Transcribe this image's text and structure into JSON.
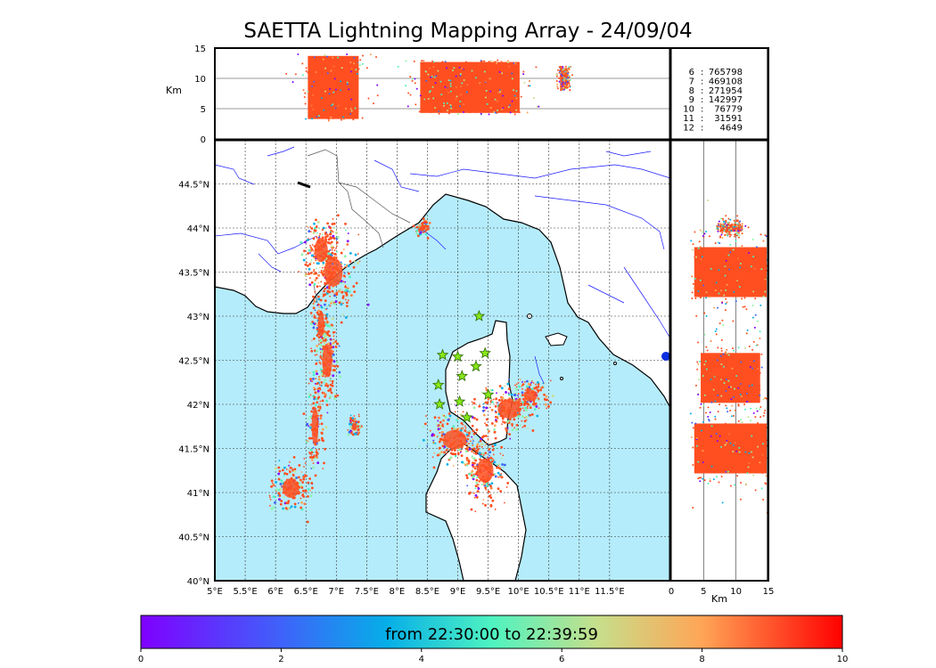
{
  "title": "SAETTA Lightning Mapping Array - 24/09/04",
  "colorbar": {
    "label": "from 22:30:00 to 22:39:59",
    "ticks": [
      "0",
      "2",
      "4",
      "6",
      "8",
      "10"
    ]
  },
  "stats": [
    {
      "level": "6",
      "count": "765798",
      "highlight": false
    },
    {
      "level": "7",
      "count": "469108",
      "highlight": true
    },
    {
      "level": "8",
      "count": "271954",
      "highlight": false
    },
    {
      "level": "9",
      "count": "142997",
      "highlight": false
    },
    {
      "level": "10",
      "count": "76779",
      "highlight": false
    },
    {
      "level": "11",
      "count": "31591",
      "highlight": false
    },
    {
      "level": "12",
      "count": "4649",
      "highlight": false
    }
  ],
  "colors": {
    "sea": "#b5ecfb",
    "dense_strokes": "#ff4f20",
    "highlight_text": "#ff0000",
    "station_marker": "#88e818",
    "rivers": "#1a1aff"
  },
  "chart_data": [
    {
      "type": "scatter",
      "name": "plan_view",
      "xlabel": "",
      "ylabel": "",
      "xlim": [
        5,
        12.5
      ],
      "ylim": [
        40,
        45
      ],
      "xticks": [
        "5°E",
        "5.5°E",
        "6°E",
        "6.5°E",
        "7°E",
        "7.5°E",
        "8°E",
        "8.5°E",
        "9°E",
        "9.5°E",
        "10°E",
        "10.5°E",
        "11°E",
        "11.5°E"
      ],
      "yticks": [
        "40°N",
        "40.5°N",
        "41°N",
        "41.5°N",
        "42°N",
        "42.5°N",
        "43°N",
        "43.5°N",
        "44°N",
        "44.5°N"
      ],
      "grid": true,
      "stations": [
        {
          "lon": 9.35,
          "lat": 43.0
        },
        {
          "lon": 8.75,
          "lat": 42.56
        },
        {
          "lon": 9.0,
          "lat": 42.54
        },
        {
          "lon": 9.45,
          "lat": 42.58
        },
        {
          "lon": 9.3,
          "lat": 42.43
        },
        {
          "lon": 9.07,
          "lat": 42.32
        },
        {
          "lon": 8.68,
          "lat": 42.22
        },
        {
          "lon": 9.5,
          "lat": 42.11
        },
        {
          "lon": 8.7,
          "lat": 42.0
        },
        {
          "lon": 9.03,
          "lat": 42.03
        },
        {
          "lon": 9.15,
          "lat": 41.85
        }
      ],
      "dense_regions": [
        {
          "lon": 6.95,
          "lat": 43.5,
          "dlon": 0.28,
          "dlat": 0.3
        },
        {
          "lon": 6.75,
          "lat": 43.75,
          "dlon": 0.2,
          "dlat": 0.25
        },
        {
          "lon": 6.85,
          "lat": 42.5,
          "dlon": 0.15,
          "dlat": 0.35
        },
        {
          "lon": 6.75,
          "lat": 42.9,
          "dlon": 0.1,
          "dlat": 0.25
        },
        {
          "lon": 6.65,
          "lat": 41.75,
          "dlon": 0.1,
          "dlat": 0.4
        },
        {
          "lon": 6.25,
          "lat": 41.05,
          "dlon": 0.25,
          "dlat": 0.2
        },
        {
          "lon": 8.95,
          "lat": 41.6,
          "dlon": 0.35,
          "dlat": 0.2
        },
        {
          "lon": 9.45,
          "lat": 41.25,
          "dlon": 0.25,
          "dlat": 0.25
        },
        {
          "lon": 9.85,
          "lat": 41.95,
          "dlon": 0.35,
          "dlat": 0.2
        },
        {
          "lon": 10.2,
          "lat": 42.1,
          "dlon": 0.2,
          "dlat": 0.12
        },
        {
          "lon": 8.42,
          "lat": 44.0,
          "dlon": 0.08,
          "dlat": 0.06
        },
        {
          "lon": 7.3,
          "lat": 41.75,
          "dlon": 0.08,
          "dlat": 0.08
        }
      ]
    },
    {
      "type": "scatter",
      "name": "altitude_vs_longitude",
      "ylabel": "Km",
      "xlim": [
        5,
        12.5
      ],
      "ylim": [
        0,
        15
      ],
      "yticks": [
        "0",
        "5",
        "10",
        "15"
      ],
      "dense_bands": [
        {
          "lon": 6.95,
          "alt_min": 3,
          "alt_max": 14
        },
        {
          "lon": 8.8,
          "alt_min": 4,
          "alt_max": 13
        },
        {
          "lon": 9.6,
          "alt_min": 4,
          "alt_max": 13
        },
        {
          "lon": 10.75,
          "alt_min": 8,
          "alt_max": 12
        }
      ]
    },
    {
      "type": "scatter",
      "name": "latitude_vs_altitude",
      "xlabel": "Km",
      "xlim": [
        0,
        15
      ],
      "ylim": [
        40,
        45
      ],
      "xticks": [
        "0",
        "5",
        "10",
        "15"
      ],
      "dense_bands": [
        {
          "lat": 43.5,
          "alt_min": 3,
          "alt_max": 15
        },
        {
          "lat": 42.3,
          "alt_min": 4,
          "alt_max": 14
        },
        {
          "lat": 41.5,
          "alt_min": 3,
          "alt_max": 15
        },
        {
          "lat": 44.0,
          "alt_min": 7,
          "alt_max": 11
        }
      ]
    }
  ]
}
